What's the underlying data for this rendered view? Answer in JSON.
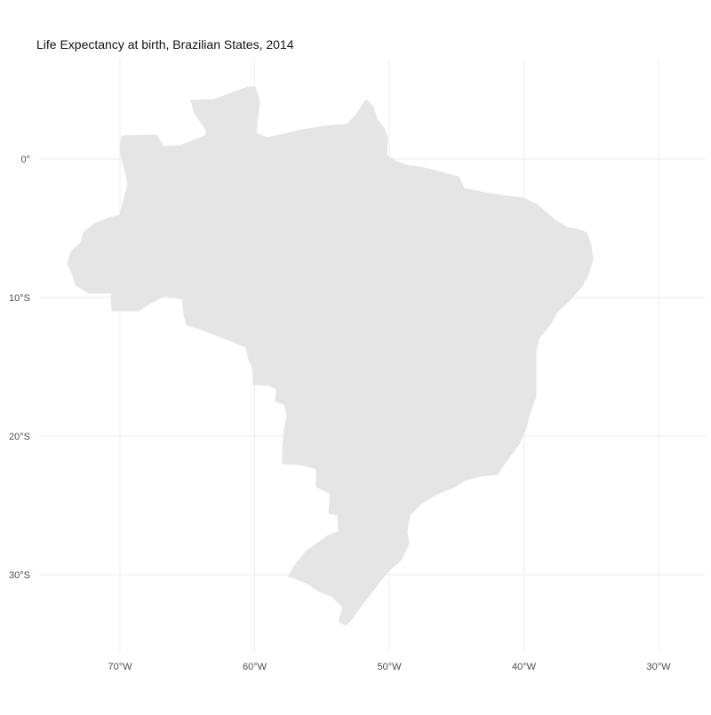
{
  "title": "Life Expectancy at birth, Brazilian States, 2014",
  "chart_data": {
    "type": "map",
    "title": "Life Expectancy at birth, Brazilian States, 2014",
    "region": "Brazil",
    "fill_color": "#e5e5e5",
    "grid": true,
    "grid_color": "#ebebeb",
    "legend": "none",
    "x_ticks": [
      {
        "value": -70,
        "label": "70°W"
      },
      {
        "value": -60,
        "label": "60°W"
      },
      {
        "value": -50,
        "label": "50°W"
      },
      {
        "value": -40,
        "label": "40°W"
      },
      {
        "value": -30,
        "label": "30°W"
      }
    ],
    "y_ticks": [
      {
        "value": 0,
        "label": "0°"
      },
      {
        "value": -10,
        "label": "10°S"
      },
      {
        "value": -20,
        "label": "20°S"
      },
      {
        "value": -30,
        "label": "30°S"
      }
    ]
  }
}
